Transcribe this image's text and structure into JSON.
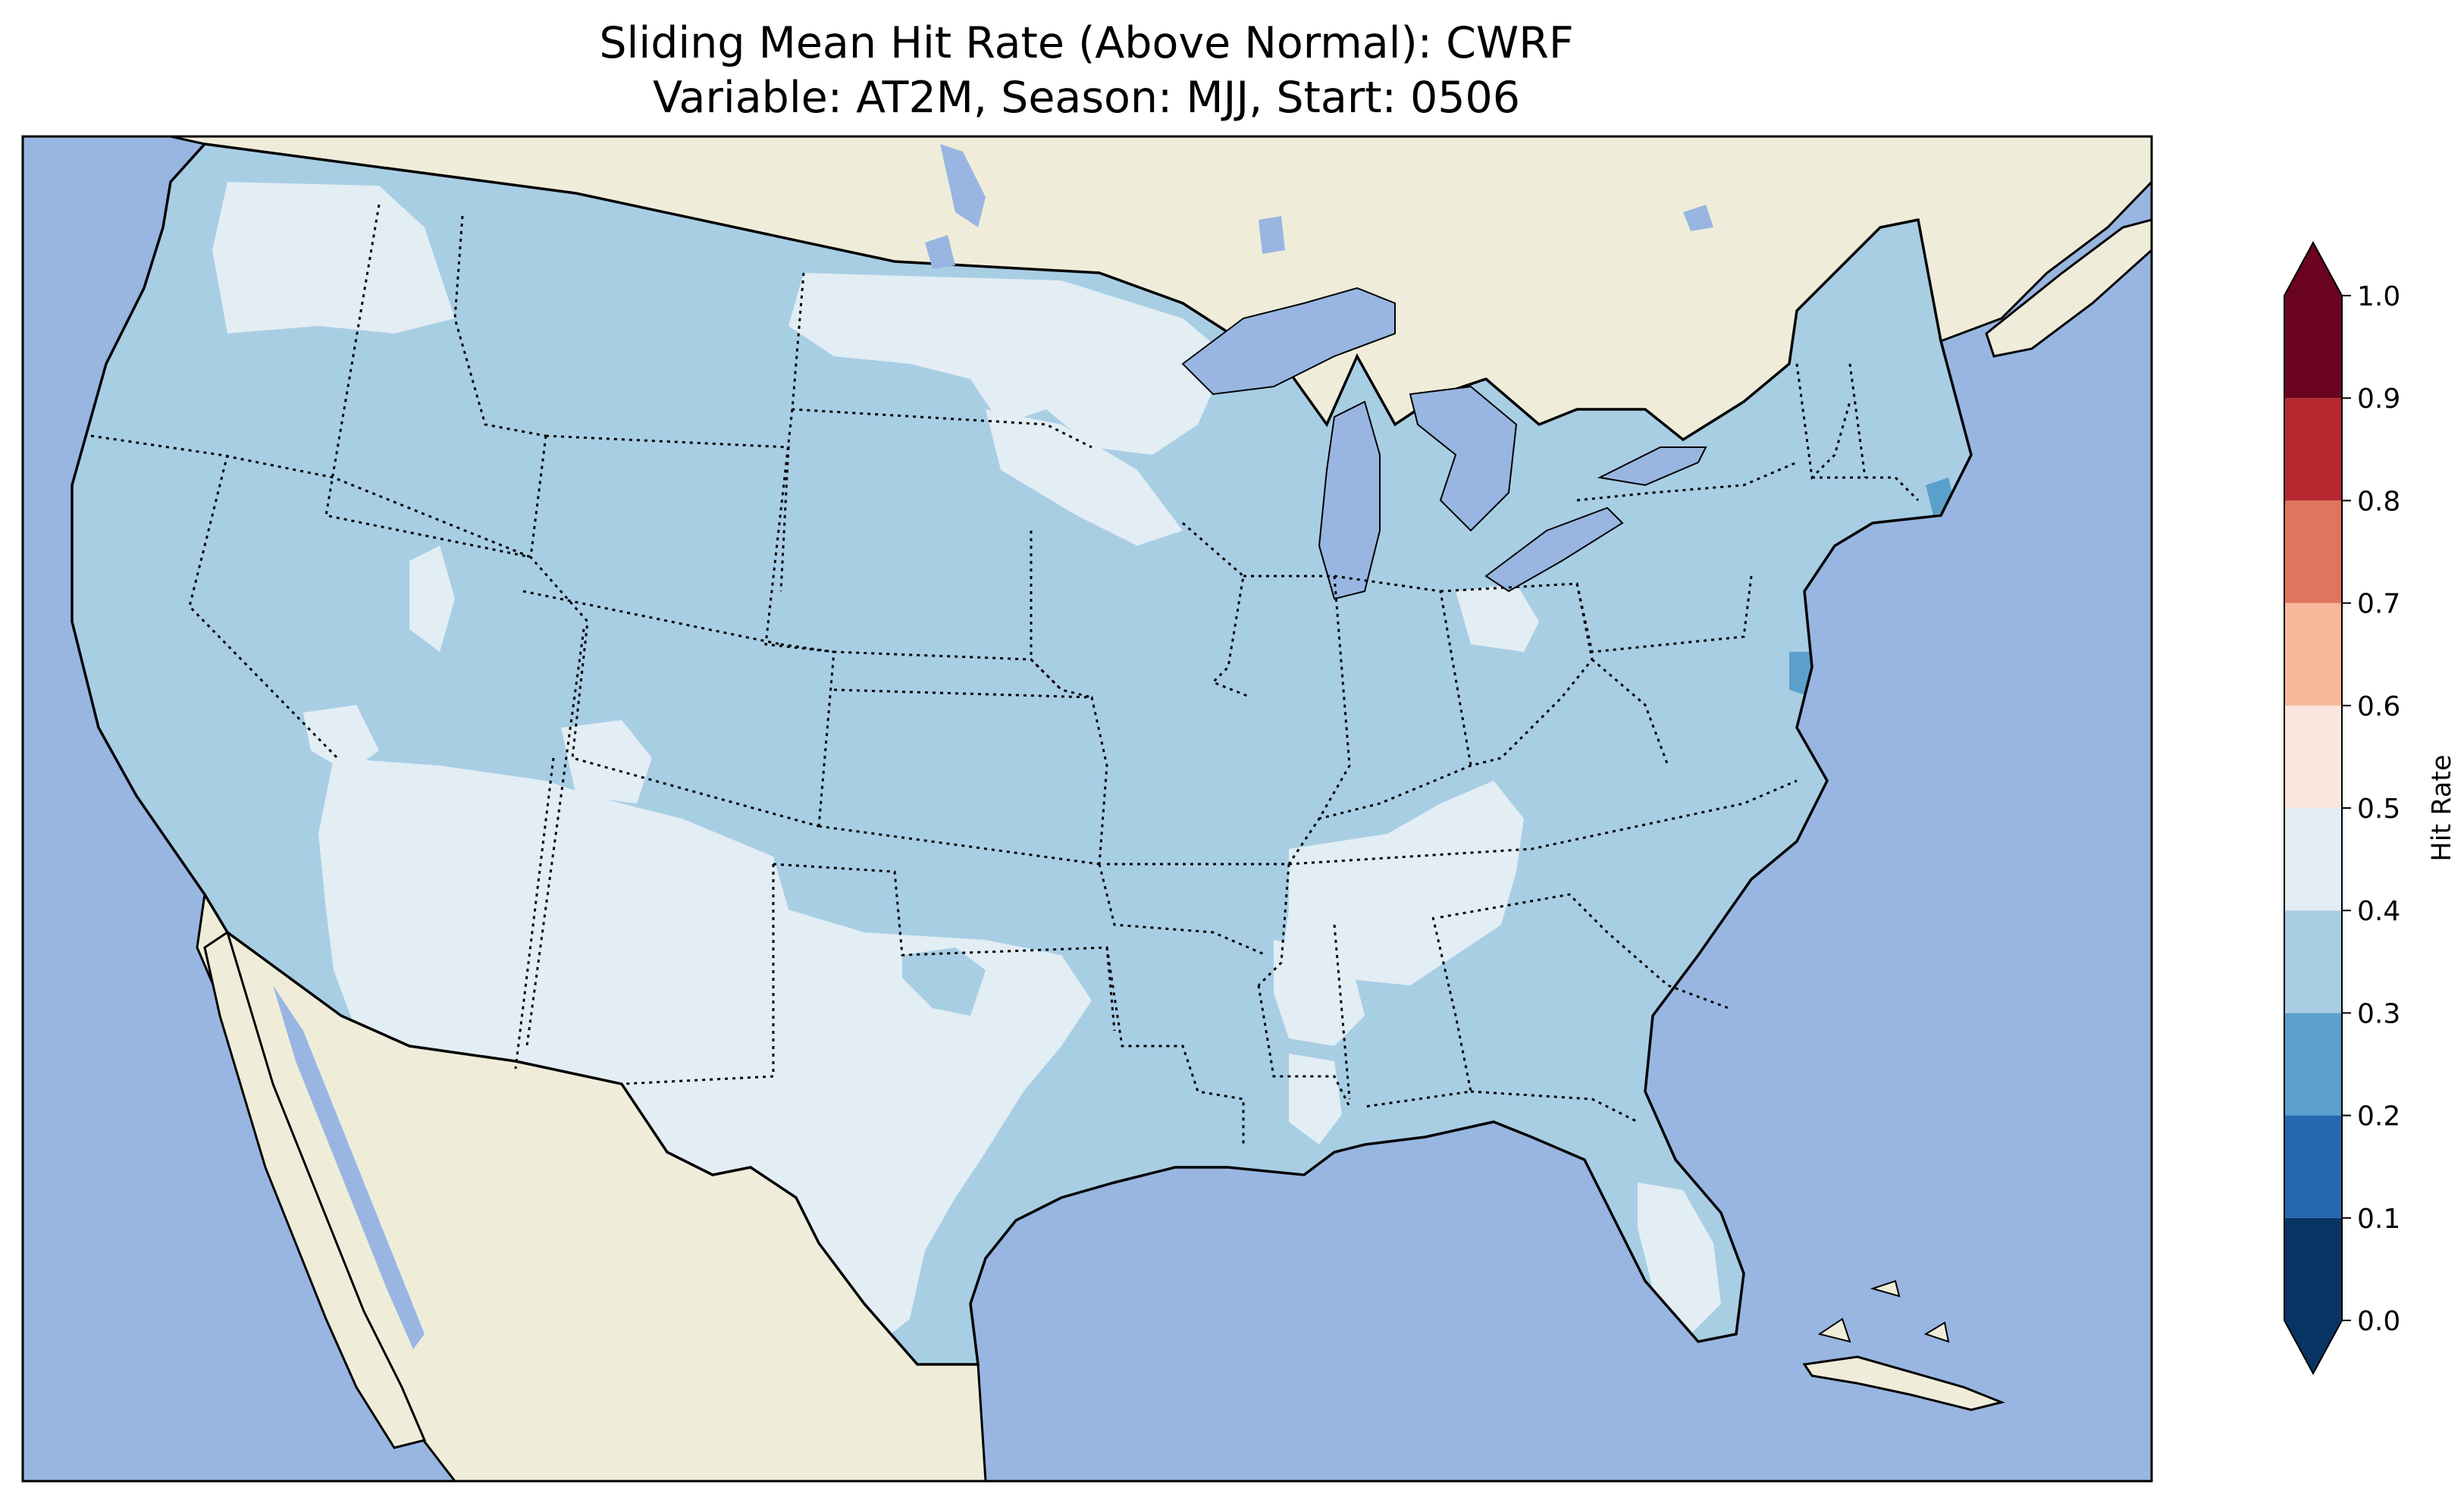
{
  "title": {
    "line1": "Sliding Mean Hit Rate (Above Normal): CWRF",
    "line2": "Variable: AT2M, Season: MJJ, Start: 0506"
  },
  "colors": {
    "ocean": "#98b6e1",
    "land": "#efedda",
    "lake": "#98b6e1",
    "hit_0.3_0.4": "#a8cee4",
    "hit_0.4_0.5": "#e2edf4",
    "hit_0.2_0.3": "#5aa0cb"
  },
  "colorbar": {
    "label": "Hit Rate",
    "ticks": [
      "0.0",
      "0.1",
      "0.2",
      "0.3",
      "0.4",
      "0.5",
      "0.6",
      "0.7",
      "0.8",
      "0.9",
      "1.0"
    ],
    "bins": [
      {
        "from": 0.0,
        "to": 0.1,
        "color": "#083463"
      },
      {
        "from": 0.1,
        "to": 0.2,
        "color": "#2468b0"
      },
      {
        "from": 0.2,
        "to": 0.3,
        "color": "#5aa0cb"
      },
      {
        "from": 0.3,
        "to": 0.4,
        "color": "#a8cee4"
      },
      {
        "from": 0.4,
        "to": 0.5,
        "color": "#e2edf4"
      },
      {
        "from": 0.5,
        "to": 0.6,
        "color": "#f9e6dc"
      },
      {
        "from": 0.6,
        "to": 0.7,
        "color": "#f7b899"
      },
      {
        "from": 0.7,
        "to": 0.8,
        "color": "#df755d"
      },
      {
        "from": 0.8,
        "to": 0.9,
        "color": "#b82730"
      },
      {
        "from": 0.9,
        "to": 1.0,
        "color": "#6a0320"
      }
    ],
    "under_color": "#083463",
    "over_color": "#6a0320",
    "extend": "both"
  },
  "map": {
    "region": "contiguous-united-states",
    "dominant_hit_rate_range": "0.3-0.4"
  }
}
